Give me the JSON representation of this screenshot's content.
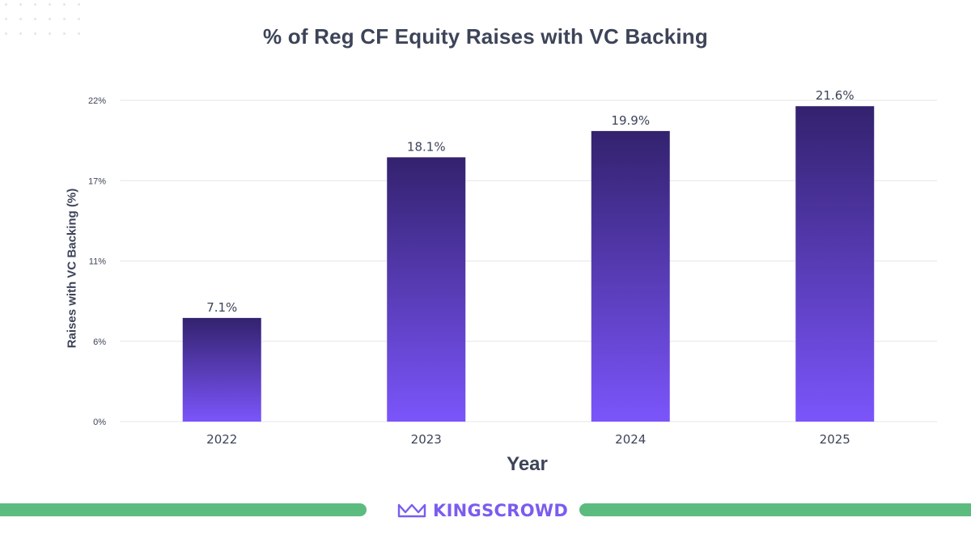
{
  "chart_data": {
    "type": "bar",
    "title": "% of Reg CF Equity Raises with VC Backing",
    "xlabel": "Year",
    "ylabel": "Raises with VC Backing (%)",
    "categories": [
      "2022",
      "2023",
      "2024",
      "2025"
    ],
    "values": [
      7.1,
      18.1,
      19.9,
      21.6
    ],
    "value_labels": [
      "7.1%",
      "18.1%",
      "19.9%",
      "21.6%"
    ],
    "y_ticks": [
      0,
      5.5,
      11,
      16.5,
      22
    ],
    "y_tick_labels": [
      "0%",
      "6%",
      "11%",
      "17%",
      "22%"
    ],
    "ylim": [
      0,
      22
    ],
    "grid": true,
    "legend": "none",
    "colors": {
      "bar_top": "#33226e",
      "bar_bottom": "#7b55fb",
      "grid": "#e6e6e6",
      "text": "#3d4458"
    }
  },
  "footer": {
    "brand_name": "KINGSCROWD",
    "accent_color": "#5cbb7f",
    "brand_color": "#7b5cf0",
    "logo_icon": "crown-icon"
  }
}
